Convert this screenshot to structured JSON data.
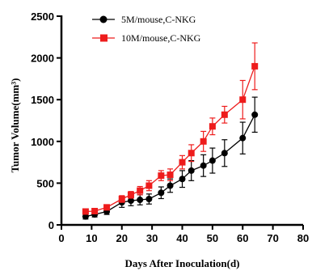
{
  "chart_data": {
    "type": "line",
    "xlabel": "Days After Inoculation(d)",
    "ylabel": "Tumor Volume(mm³)",
    "xlim": [
      0,
      80
    ],
    "ylim": [
      0,
      2500
    ],
    "xticks": [
      "0",
      "10",
      "20",
      "30",
      "40",
      "50",
      "60",
      "70",
      "80"
    ],
    "yticks": [
      "0",
      "500",
      "1000",
      "1500",
      "2000",
      "2500"
    ],
    "grid": false,
    "legend_position": "top-left",
    "series": [
      {
        "name": "5M/mouse,C-NKG",
        "color": "#000000",
        "marker": "circle",
        "x": [
          8,
          11,
          15,
          20,
          23,
          26,
          29,
          33,
          36,
          40,
          43,
          47,
          50,
          54,
          60,
          64
        ],
        "y": [
          100,
          125,
          160,
          270,
          290,
          300,
          310,
          385,
          470,
          550,
          650,
          710,
          770,
          860,
          1040,
          1320
        ],
        "error": [
          30,
          30,
          35,
          60,
          60,
          60,
          60,
          70,
          80,
          100,
          120,
          130,
          150,
          160,
          190,
          210
        ]
      },
      {
        "name": "10M/mouse,C-NKG",
        "color": "#ee1c1c",
        "marker": "square",
        "x": [
          8,
          11,
          15,
          20,
          23,
          26,
          29,
          33,
          36,
          40,
          43,
          47,
          50,
          54,
          60,
          64
        ],
        "y": [
          160,
          165,
          210,
          310,
          360,
          410,
          470,
          590,
          600,
          750,
          860,
          1000,
          1180,
          1320,
          1500,
          1900
        ],
        "error": [
          20,
          25,
          30,
          40,
          40,
          50,
          60,
          60,
          70,
          80,
          100,
          120,
          100,
          100,
          230,
          280
        ]
      }
    ]
  }
}
